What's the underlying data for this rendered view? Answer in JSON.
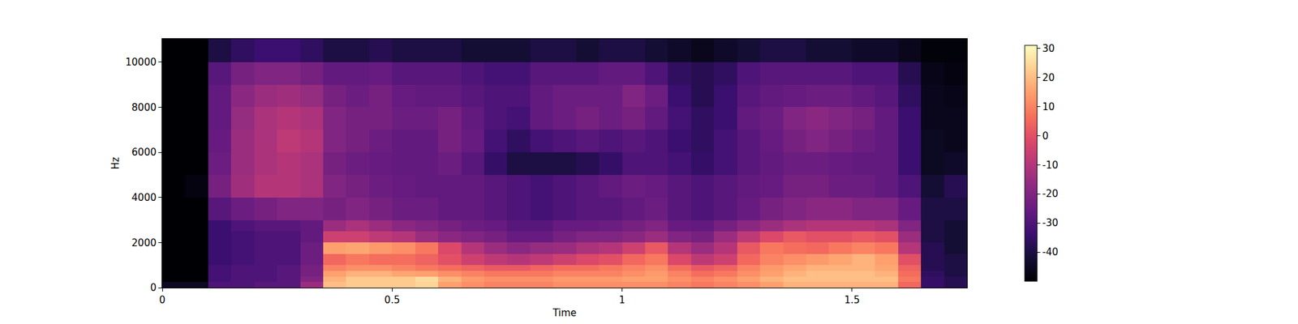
{
  "chart_data": {
    "type": "heatmap",
    "x_label": "Time",
    "y_label": "Hz",
    "x_bins": [
      0,
      0.05,
      0.1,
      0.15,
      0.2,
      0.25,
      0.3,
      0.35,
      0.4,
      0.45,
      0.5,
      0.55,
      0.6,
      0.65,
      0.7,
      0.75,
      0.8,
      0.85,
      0.9,
      0.95,
      1,
      1.05,
      1.1,
      1.15,
      1.2,
      1.25,
      1.3,
      1.35,
      1.4,
      1.45,
      1.5,
      1.55,
      1.6,
      1.65,
      1.7,
      1.75
    ],
    "y_bins": [
      0,
      250,
      500,
      750,
      1000,
      1500,
      2000,
      2500,
      3000,
      4000,
      5000,
      6000,
      7000,
      8000,
      9000,
      10000,
      11025
    ],
    "z": [
      [
        -45,
        -45,
        -30,
        -30,
        -28,
        -28,
        -15,
        20,
        22,
        22,
        22,
        24,
        15,
        12,
        10,
        10,
        10,
        12,
        12,
        12,
        12,
        12,
        10,
        8,
        10,
        12,
        15,
        18,
        18,
        18,
        18,
        18,
        5,
        -35,
        -38
      ],
      [
        -50,
        -50,
        -32,
        -30,
        -30,
        -28,
        -20,
        18,
        22,
        22,
        22,
        25,
        18,
        14,
        12,
        12,
        12,
        14,
        14,
        14,
        15,
        15,
        12,
        10,
        12,
        15,
        18,
        20,
        20,
        20,
        20,
        20,
        8,
        -35,
        -38
      ],
      [
        -50,
        -50,
        -32,
        -30,
        -30,
        -28,
        -22,
        15,
        18,
        18,
        16,
        15,
        12,
        10,
        8,
        8,
        8,
        10,
        10,
        10,
        12,
        14,
        10,
        6,
        8,
        12,
        15,
        18,
        20,
        20,
        20,
        18,
        6,
        -36,
        -40
      ],
      [
        -50,
        -50,
        -32,
        -30,
        -30,
        -28,
        -22,
        10,
        12,
        12,
        10,
        8,
        6,
        4,
        2,
        2,
        4,
        6,
        6,
        8,
        10,
        12,
        6,
        2,
        4,
        10,
        14,
        16,
        18,
        18,
        18,
        16,
        4,
        -38,
        -40
      ],
      [
        -50,
        -50,
        -34,
        -32,
        -30,
        -30,
        -24,
        5,
        8,
        6,
        6,
        4,
        0,
        -5,
        -8,
        -10,
        -8,
        -5,
        -2,
        0,
        5,
        8,
        -2,
        -8,
        -5,
        5,
        10,
        12,
        14,
        16,
        18,
        15,
        0,
        -38,
        -40
      ],
      [
        -50,
        -50,
        -34,
        -32,
        -30,
        -30,
        -24,
        15,
        16,
        14,
        12,
        8,
        -2,
        -10,
        -15,
        -18,
        -16,
        -15,
        -12,
        -10,
        -5,
        2,
        -10,
        -15,
        -10,
        2,
        8,
        6,
        5,
        8,
        10,
        8,
        -10,
        -38,
        -42
      ],
      [
        -50,
        -50,
        -34,
        -32,
        -30,
        -30,
        -26,
        -5,
        -5,
        -8,
        -10,
        -15,
        -18,
        -20,
        -22,
        -25,
        -25,
        -22,
        -20,
        -20,
        -18,
        -15,
        -20,
        -22,
        -15,
        -8,
        -2,
        2,
        0,
        0,
        2,
        0,
        -15,
        -40,
        -42
      ],
      [
        -50,
        -50,
        -34,
        -30,
        -28,
        -28,
        -26,
        -15,
        -12,
        -15,
        -18,
        -20,
        -22,
        -24,
        -25,
        -28,
        -28,
        -25,
        -25,
        -24,
        -22,
        -20,
        -25,
        -26,
        -22,
        -18,
        -15,
        -12,
        -10,
        -10,
        -10,
        -12,
        -20,
        -40,
        -42
      ],
      [
        -50,
        -50,
        -28,
        -24,
        -22,
        -20,
        -20,
        -22,
        -20,
        -22,
        -24,
        -24,
        -26,
        -26,
        -28,
        -30,
        -32,
        -30,
        -28,
        -28,
        -26,
        -24,
        -28,
        -30,
        -28,
        -25,
        -22,
        -20,
        -18,
        -18,
        -20,
        -20,
        -25,
        -40,
        -40
      ],
      [
        -50,
        -48,
        -22,
        -14,
        -10,
        -10,
        -12,
        -20,
        -22,
        -24,
        -25,
        -26,
        -26,
        -26,
        -28,
        -30,
        -32,
        -30,
        -28,
        -26,
        -24,
        -25,
        -28,
        -30,
        -28,
        -26,
        -25,
        -22,
        -22,
        -24,
        -24,
        -26,
        -30,
        -42,
        -38
      ],
      [
        -50,
        -50,
        -24,
        -15,
        -12,
        -10,
        -12,
        -22,
        -24,
        -25,
        -26,
        -26,
        -24,
        -28,
        -35,
        -40,
        -40,
        -40,
        -38,
        -35,
        -30,
        -30,
        -32,
        -35,
        -32,
        -28,
        -26,
        -24,
        -24,
        -25,
        -26,
        -26,
        -34,
        -45,
        -44
      ],
      [
        -50,
        -50,
        -25,
        -15,
        -12,
        -8,
        -10,
        -20,
        -22,
        -24,
        -26,
        -26,
        -22,
        -25,
        -32,
        -36,
        -32,
        -30,
        -28,
        -30,
        -28,
        -30,
        -34,
        -36,
        -32,
        -28,
        -25,
        -22,
        -20,
        -22,
        -24,
        -26,
        -34,
        -45,
        -46
      ],
      [
        -50,
        -50,
        -26,
        -16,
        -12,
        -10,
        -12,
        -20,
        -22,
        -22,
        -24,
        -24,
        -22,
        -26,
        -30,
        -32,
        -26,
        -24,
        -22,
        -24,
        -22,
        -26,
        -32,
        -36,
        -34,
        -26,
        -24,
        -20,
        -18,
        -20,
        -22,
        -26,
        -34,
        -46,
        -46
      ],
      [
        -50,
        -50,
        -26,
        -18,
        -15,
        -14,
        -16,
        -22,
        -24,
        -22,
        -25,
        -26,
        -26,
        -28,
        -30,
        -30,
        -26,
        -24,
        -24,
        -24,
        -20,
        -24,
        -34,
        -38,
        -34,
        -28,
        -26,
        -25,
        -24,
        -24,
        -26,
        -28,
        -36,
        -46,
        -47
      ],
      [
        -50,
        -50,
        -28,
        -22,
        -20,
        -20,
        -22,
        -26,
        -26,
        -25,
        -28,
        -28,
        -28,
        -30,
        -32,
        -32,
        -28,
        -28,
        -28,
        -26,
        -26,
        -30,
        -36,
        -38,
        -36,
        -30,
        -28,
        -28,
        -28,
        -28,
        -30,
        -30,
        -38,
        -47,
        -48
      ],
      [
        -50,
        -50,
        -40,
        -36,
        -34,
        -34,
        -36,
        -40,
        -40,
        -38,
        -40,
        -40,
        -40,
        -42,
        -42,
        -42,
        -40,
        -40,
        -42,
        -40,
        -40,
        -42,
        -44,
        -46,
        -44,
        -42,
        -40,
        -40,
        -42,
        -42,
        -44,
        -44,
        -46,
        -49,
        -49
      ]
    ],
    "xlim": [
      0,
      1.75
    ],
    "xticks": [
      0,
      0.5,
      1,
      1.5
    ],
    "ylim": [
      0,
      11025
    ],
    "yticks": [
      0,
      2000,
      4000,
      6000,
      8000,
      10000
    ],
    "zlim": [
      -50,
      31
    ],
    "zticks": [
      -40,
      -30,
      -20,
      -10,
      0,
      10,
      20,
      30
    ],
    "grid": false
  }
}
